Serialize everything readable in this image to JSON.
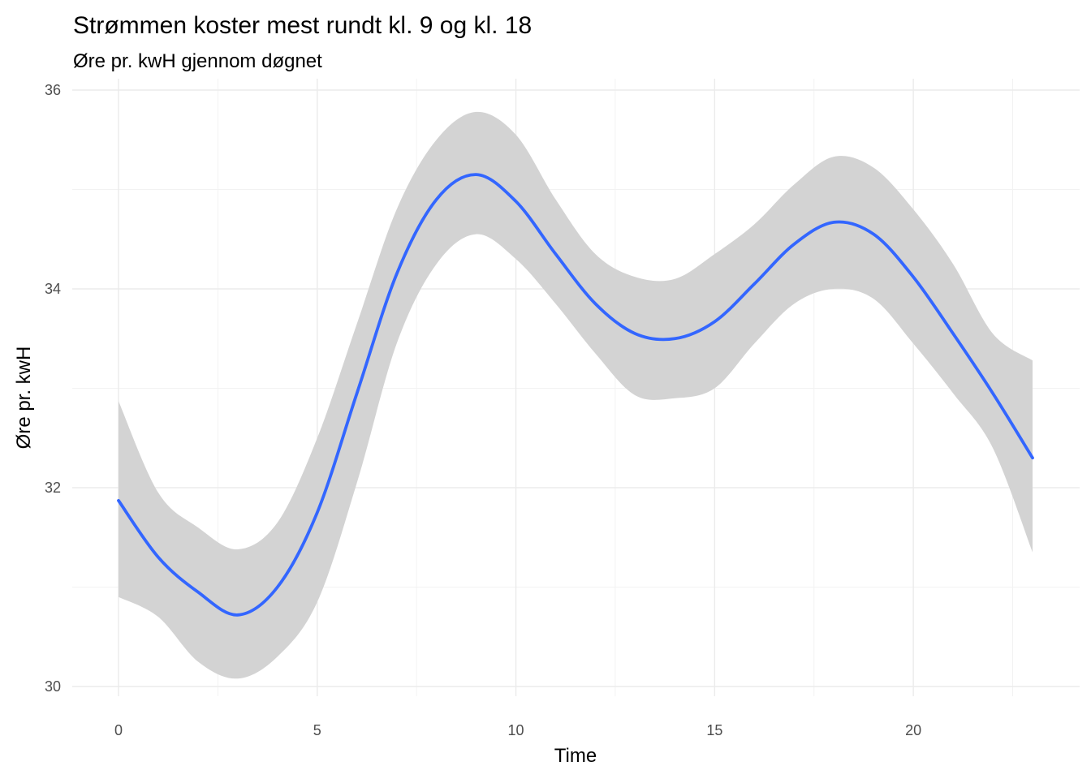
{
  "chart_data": {
    "type": "line",
    "title": "Strømmen koster mest rundt kl. 9 og kl. 18",
    "subtitle": "Øre pr. kwH gjennom døgnet",
    "xlabel": "Time",
    "ylabel": "Øre pr. kwH",
    "xlim": [
      0,
      23
    ],
    "ylim": [
      30,
      36
    ],
    "x_ticks": [
      0,
      5,
      10,
      15,
      20
    ],
    "y_ticks": [
      30,
      32,
      34,
      36
    ],
    "grid": true,
    "legend": "none",
    "series": [
      {
        "style": "smoothed line with confidence band",
        "color": "#3366FF",
        "band_color": "#D3D3D3",
        "x": [
          0,
          1,
          2,
          3,
          4,
          5,
          6,
          7,
          8,
          9,
          10,
          11,
          12,
          13,
          14,
          15,
          16,
          17,
          18,
          19,
          20,
          21,
          22,
          23
        ],
        "y": [
          31.87,
          31.3,
          30.95,
          30.72,
          31.0,
          31.75,
          32.95,
          34.15,
          34.9,
          35.15,
          34.88,
          34.35,
          33.85,
          33.55,
          33.5,
          33.67,
          34.05,
          34.45,
          34.67,
          34.55,
          34.12,
          33.55,
          32.95,
          32.3
        ],
        "y_lower": [
          30.9,
          30.7,
          30.25,
          30.08,
          30.3,
          30.85,
          32.05,
          33.45,
          34.25,
          34.55,
          34.3,
          33.85,
          33.35,
          32.93,
          32.9,
          33.0,
          33.45,
          33.85,
          34.0,
          33.9,
          33.45,
          32.95,
          32.4,
          31.35
        ],
        "y_upper": [
          32.87,
          31.95,
          31.6,
          31.38,
          31.65,
          32.5,
          33.65,
          34.8,
          35.5,
          35.78,
          35.55,
          34.9,
          34.35,
          34.12,
          34.1,
          34.35,
          34.65,
          35.05,
          35.33,
          35.22,
          34.8,
          34.25,
          33.55,
          33.28
        ]
      }
    ]
  }
}
